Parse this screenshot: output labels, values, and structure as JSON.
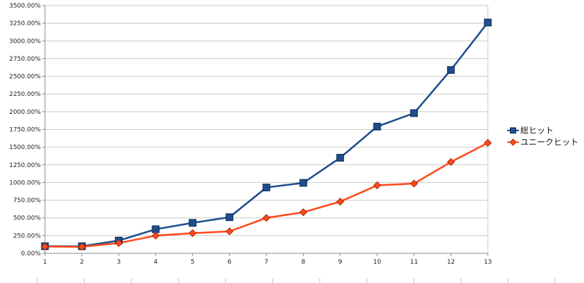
{
  "chart_data": {
    "type": "line",
    "x": [
      1,
      2,
      3,
      4,
      5,
      6,
      7,
      8,
      9,
      10,
      11,
      12,
      13
    ],
    "series": [
      {
        "name": "総ヒット",
        "color": "#1f4e8c",
        "marker": "square",
        "values": [
          100,
          100,
          180,
          340,
          430,
          510,
          930,
          995,
          1350,
          1790,
          1980,
          2590,
          3260
        ]
      },
      {
        "name": "ユニークヒット",
        "color": "#ff4a1c",
        "marker": "diamond",
        "values": [
          95,
          92,
          145,
          250,
          285,
          310,
          500,
          580,
          730,
          960,
          985,
          1290,
          1560
        ]
      }
    ],
    "ylim": [
      0,
      3500
    ],
    "y_ticks": [
      "0.00%",
      "250.00%",
      "500.00%",
      "750.00%",
      "1000.00%",
      "1250.00%",
      "1500.00%",
      "1750.00%",
      "2000.00%",
      "2250.00%",
      "2500.00%",
      "2750.00%",
      "3000.00%",
      "3250.00%",
      "3500.00%"
    ],
    "x_ticks": [
      "1",
      "2",
      "3",
      "4",
      "5",
      "6",
      "7",
      "8",
      "9",
      "10",
      "11",
      "12",
      "13"
    ],
    "grid": true,
    "legend": "right"
  }
}
